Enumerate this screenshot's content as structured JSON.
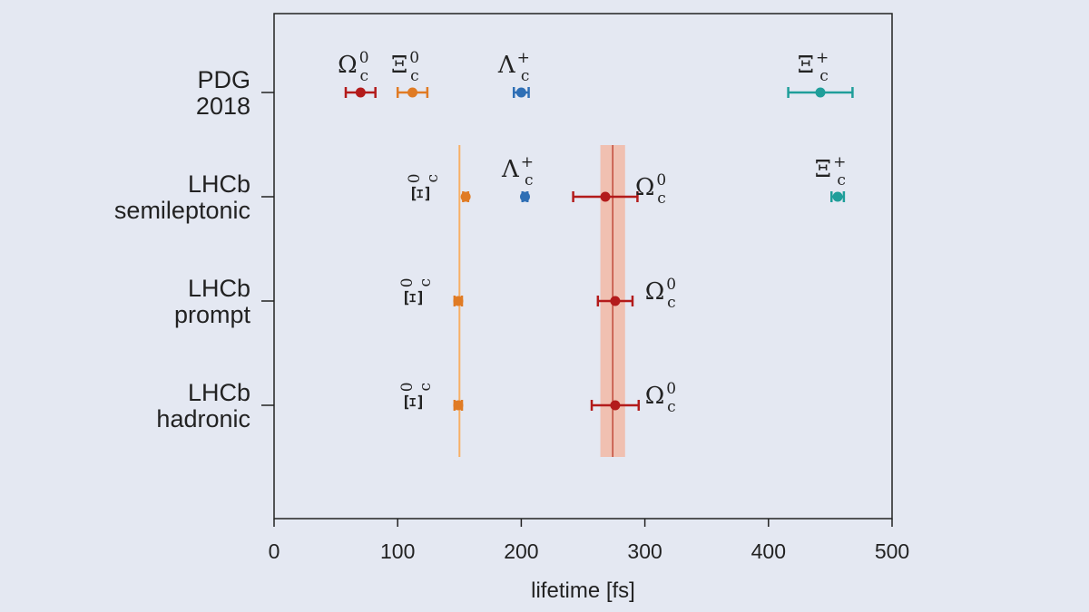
{
  "chart_data": {
    "type": "scatter",
    "xlabel": "lifetime [fs]",
    "xlim": [
      0,
      500
    ],
    "xticks": [
      "0",
      "100",
      "200",
      "300",
      "400",
      "500"
    ],
    "grid": false,
    "rows": [
      {
        "label_line1": "PDG",
        "label_line2": "2018"
      },
      {
        "label_line1": "LHCb",
        "label_line2": "semileptonic"
      },
      {
        "label_line1": "LHCb",
        "label_line2": "prompt"
      },
      {
        "label_line1": "LHCb",
        "label_line2": "hadronic"
      }
    ],
    "colors": {
      "omega_c0": "#b31b1b",
      "xi_c0": "#e07b24",
      "lambda_c_plus": "#2f6fb5",
      "xi_c_plus": "#1f9e9a",
      "band": "#f2b9a6",
      "band_line": "#c24a3a",
      "xi_line": "#f7b066"
    },
    "reference_lines": [
      {
        "series": "xi_c0",
        "x": 150,
        "from_row": 1,
        "to_row": 3
      },
      {
        "series": "omega_c0",
        "x": 274,
        "band": [
          264,
          284
        ],
        "from_row": 1,
        "to_row": 3
      }
    ],
    "points": [
      {
        "series": "omega_c0",
        "row": 0,
        "x": 70,
        "err": 12,
        "label": "Ω",
        "sup": "0",
        "sub": "c",
        "label_pos": "above"
      },
      {
        "series": "xi_c0",
        "row": 0,
        "x": 112,
        "err": 12,
        "label": "Ξ",
        "sup": "0",
        "sub": "c",
        "label_pos": "above"
      },
      {
        "series": "lambda_c_plus",
        "row": 0,
        "x": 200,
        "err": 6,
        "label": "Λ",
        "sup": "+",
        "sub": "c",
        "label_pos": "above"
      },
      {
        "series": "xi_c_plus",
        "row": 0,
        "x": 442,
        "err": 26,
        "label": "Ξ",
        "sup": "+",
        "sub": "c",
        "label_pos": "above"
      },
      {
        "series": "xi_c0",
        "row": 1,
        "x": 155,
        "err": 2,
        "label": "Ξ",
        "sup": "0",
        "sub": "c",
        "label_pos": "left"
      },
      {
        "series": "lambda_c_plus",
        "row": 1,
        "x": 203,
        "err": 2,
        "label": "Λ",
        "sup": "+",
        "sub": "c",
        "label_pos": "above"
      },
      {
        "series": "omega_c0",
        "row": 1,
        "x": 268,
        "err": 26,
        "label": "Ω",
        "sup": "0",
        "sub": "c",
        "label_pos": "right"
      },
      {
        "series": "xi_c_plus",
        "row": 1,
        "x": 456,
        "err": 5,
        "label": "Ξ",
        "sup": "+",
        "sub": "c",
        "label_pos": "above"
      },
      {
        "series": "xi_c0",
        "row": 2,
        "x": 149,
        "err": 3,
        "label": "Ξ",
        "sup": "0",
        "sub": "c",
        "label_pos": "left"
      },
      {
        "series": "omega_c0",
        "row": 2,
        "x": 276,
        "err": 14,
        "label": "Ω",
        "sup": "0",
        "sub": "c",
        "label_pos": "right"
      },
      {
        "series": "xi_c0",
        "row": 3,
        "x": 149,
        "err": 3,
        "label": "Ξ",
        "sup": "0",
        "sub": "c",
        "label_pos": "left"
      },
      {
        "series": "omega_c0",
        "row": 3,
        "x": 276,
        "err": 19,
        "label": "Ω",
        "sup": "0",
        "sub": "c",
        "label_pos": "right"
      }
    ]
  }
}
